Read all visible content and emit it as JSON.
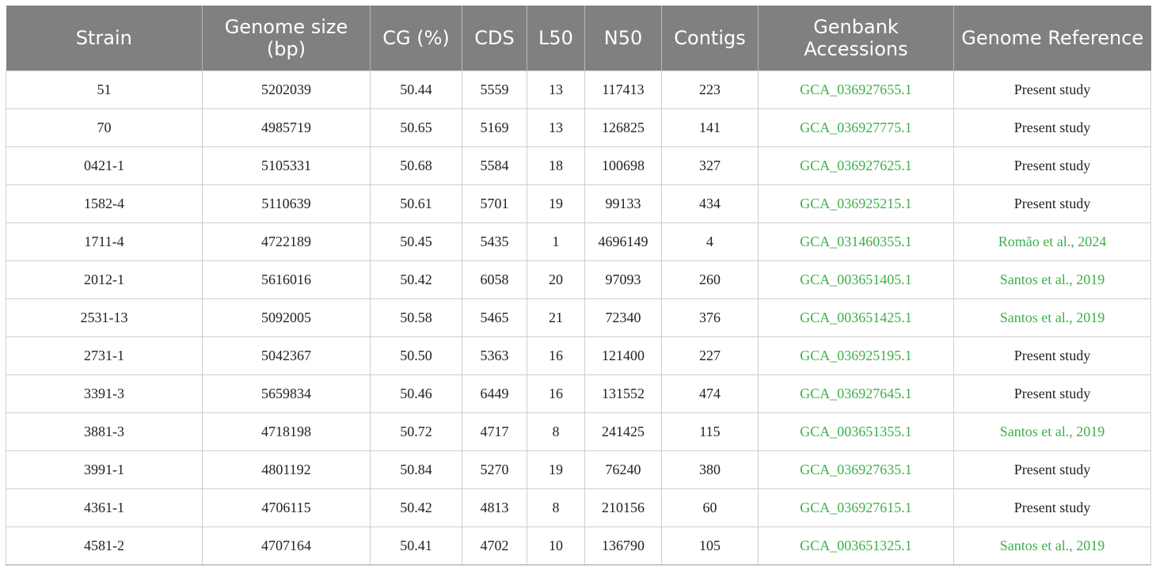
{
  "colors": {
    "header_bg": "#808080",
    "header_text": "#ffffff",
    "link": "#3cb04a",
    "text": "#222222",
    "grid": "#cfcfcf"
  },
  "table": {
    "headers": [
      "Strain",
      "Genome size (bp)",
      "CG (%)",
      "CDS",
      "L50",
      "N50",
      "Contigs",
      "Genbank Accessions",
      "Genome Reference"
    ],
    "rows": [
      [
        "51",
        "5202039",
        "50.44",
        "5559",
        "13",
        "117413",
        "223",
        "GCA_036927655.1",
        "Present study"
      ],
      [
        "70",
        "4985719",
        "50.65",
        "5169",
        "13",
        "126825",
        "141",
        "GCA_036927775.1",
        "Present study"
      ],
      [
        "0421-1",
        "5105331",
        "50.68",
        "5584",
        "18",
        "100698",
        "327",
        "GCA_036927625.1",
        "Present study"
      ],
      [
        "1582-4",
        "5110639",
        "50.61",
        "5701",
        "19",
        "99133",
        "434",
        "GCA_036925215.1",
        "Present study"
      ],
      [
        "1711-4",
        "4722189",
        "50.45",
        "5435",
        "1",
        "4696149",
        "4",
        "GCA_031460355.1",
        "Romão et al., 2024"
      ],
      [
        "2012-1",
        "5616016",
        "50.42",
        "6058",
        "20",
        "97093",
        "260",
        "GCA_003651405.1",
        "Santos et al., 2019"
      ],
      [
        "2531-13",
        "5092005",
        "50.58",
        "5465",
        "21",
        "72340",
        "376",
        "GCA_003651425.1",
        "Santos et al., 2019"
      ],
      [
        "2731-1",
        "5042367",
        "50.50",
        "5363",
        "16",
        "121400",
        "227",
        "GCA_036925195.1",
        "Present study"
      ],
      [
        "3391-3",
        "5659834",
        "50.46",
        "6449",
        "16",
        "131552",
        "474",
        "GCA_036927645.1",
        "Present study"
      ],
      [
        "3881-3",
        "4718198",
        "50.72",
        "4717",
        "8",
        "241425",
        "115",
        "GCA_003651355.1",
        "Santos et al., 2019"
      ],
      [
        "3991-1",
        "4801192",
        "50.84",
        "5270",
        "19",
        "76240",
        "380",
        "GCA_036927635.1",
        "Present study"
      ],
      [
        "4361-1",
        "4706115",
        "50.42",
        "4813",
        "8",
        "210156",
        "60",
        "GCA_036927615.1",
        "Present study"
      ],
      [
        "4581-2",
        "4707164",
        "50.41",
        "4702",
        "10",
        "136790",
        "105",
        "GCA_003651325.1",
        "Santos et al., 2019"
      ]
    ]
  }
}
